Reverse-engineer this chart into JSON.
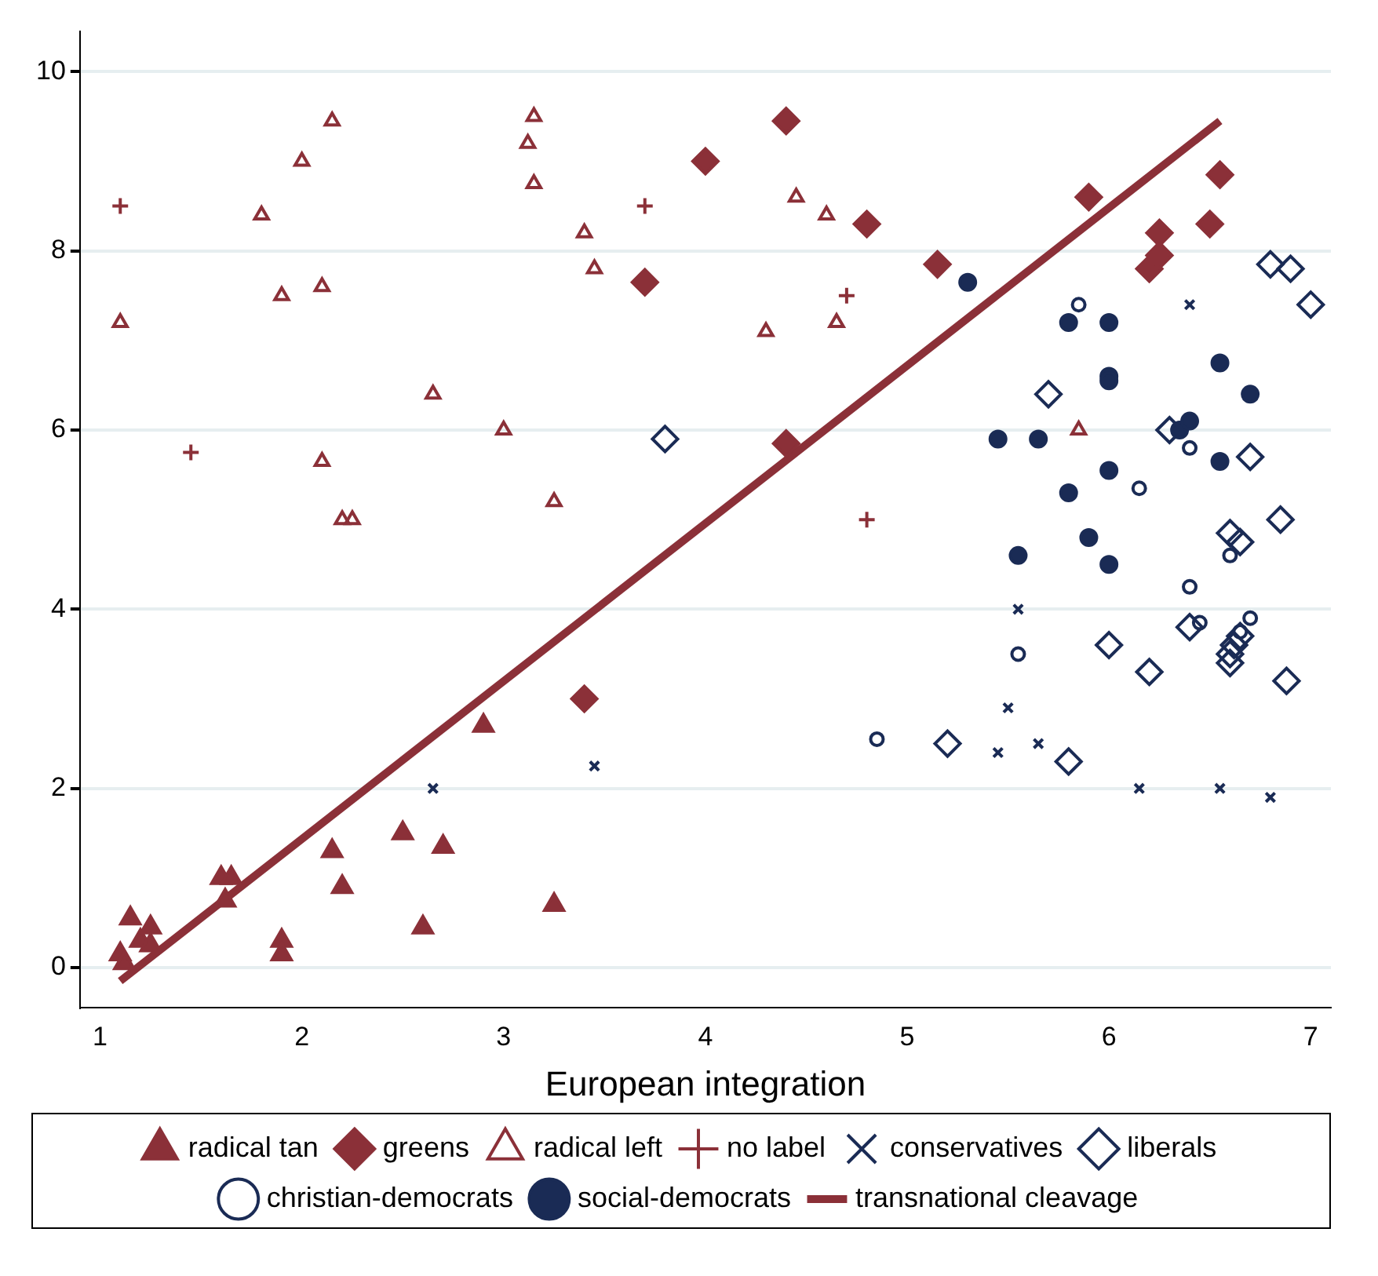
{
  "chart_data": {
    "type": "scatter",
    "xlabel": "European integration",
    "xlim": [
      0.9,
      7.1
    ],
    "ylim": [
      -0.45,
      10.45
    ],
    "xticks": [
      1,
      2,
      3,
      4,
      5,
      6,
      7
    ],
    "yticks": [
      0,
      2,
      4,
      6,
      8,
      10
    ],
    "grid": "y",
    "legend": "bottom",
    "series": [
      {
        "name": "radical tan",
        "color": "#8b3038",
        "marker": "triangle",
        "x": [
          1.1,
          1.15,
          1.12,
          1.2,
          1.25,
          1.25,
          1.6,
          1.65,
          1.62,
          1.9,
          1.9,
          2.15,
          2.2,
          2.5,
          2.6,
          2.7,
          2.9,
          3.25
        ],
        "values": [
          0.15,
          0.55,
          0.05,
          0.3,
          0.45,
          0.25,
          1.0,
          1.0,
          0.75,
          0.3,
          0.15,
          1.3,
          0.9,
          1.5,
          0.45,
          1.35,
          2.7,
          0.7
        ]
      },
      {
        "name": "greens",
        "color": "#8b3038",
        "marker": "diamond",
        "x": [
          3.4,
          3.7,
          4.0,
          4.4,
          4.4,
          4.8,
          5.15,
          5.9,
          6.2,
          6.25,
          6.25,
          6.5,
          6.55
        ],
        "values": [
          3.0,
          7.65,
          9.0,
          9.45,
          5.85,
          8.3,
          7.85,
          8.6,
          7.8,
          7.95,
          8.2,
          8.3,
          8.85
        ]
      },
      {
        "name": "radical left",
        "color": "#8b3038",
        "marker": "triangle-open",
        "x": [
          1.1,
          1.8,
          1.9,
          2.0,
          2.1,
          2.15,
          2.1,
          2.2,
          2.25,
          2.65,
          3.0,
          3.15,
          3.12,
          3.15,
          3.25,
          3.4,
          3.45,
          4.3,
          4.45,
          4.6,
          4.65,
          5.85
        ],
        "values": [
          7.2,
          8.4,
          7.5,
          9.0,
          7.6,
          9.45,
          5.65,
          5.0,
          5.0,
          6.4,
          6.0,
          9.5,
          9.2,
          8.75,
          5.2,
          8.2,
          7.8,
          7.1,
          8.6,
          8.4,
          7.2,
          6.0
        ]
      },
      {
        "name": "no label",
        "color": "#8b3038",
        "marker": "plus",
        "x": [
          1.1,
          1.45,
          3.7,
          4.7,
          4.8
        ],
        "values": [
          8.5,
          5.75,
          8.5,
          7.5,
          5.0
        ]
      },
      {
        "name": "conservatives",
        "color": "#1a2b55",
        "marker": "cross",
        "x": [
          2.65,
          3.45,
          5.45,
          5.5,
          5.55,
          5.65,
          6.15,
          6.4,
          6.55,
          6.8
        ],
        "values": [
          2.0,
          2.25,
          2.4,
          2.9,
          4.0,
          2.5,
          2.0,
          7.4,
          2.0,
          1.9
        ]
      },
      {
        "name": "liberals",
        "color": "#1a2b55",
        "marker": "diamond-open",
        "x": [
          3.8,
          5.2,
          5.7,
          5.8,
          6.0,
          6.2,
          6.3,
          6.4,
          6.6,
          6.6,
          6.62,
          6.65,
          6.6,
          6.65,
          6.7,
          6.8,
          6.85,
          6.88,
          6.9,
          7.0
        ],
        "values": [
          5.9,
          2.5,
          6.4,
          2.3,
          3.6,
          3.3,
          6.0,
          3.8,
          3.4,
          3.5,
          3.6,
          3.7,
          4.85,
          4.75,
          5.7,
          7.85,
          5.0,
          3.2,
          7.8,
          7.4
        ]
      },
      {
        "name": "christian-democrats",
        "color": "#1a2b55",
        "marker": "circle-open",
        "x": [
          4.85,
          5.55,
          5.85,
          6.15,
          6.4,
          6.4,
          6.45,
          6.6,
          6.7,
          6.65
        ],
        "values": [
          2.55,
          3.5,
          7.4,
          5.35,
          5.8,
          4.25,
          3.85,
          4.6,
          3.9,
          3.75
        ]
      },
      {
        "name": "social-democrats",
        "color": "#1a2b55",
        "marker": "circle",
        "x": [
          5.3,
          5.45,
          5.55,
          5.65,
          5.8,
          5.8,
          5.9,
          6.0,
          6.0,
          6.0,
          6.0,
          6.0,
          6.35,
          6.4,
          6.55,
          6.55,
          6.7
        ],
        "values": [
          7.65,
          5.9,
          4.6,
          5.9,
          7.2,
          5.3,
          4.8,
          7.2,
          6.6,
          6.55,
          5.55,
          4.5,
          6.0,
          6.1,
          6.75,
          5.65,
          6.4
        ]
      },
      {
        "name": "transnational cleavage",
        "type": "line",
        "color": "#8b3038",
        "marker": "none",
        "line_style": "solid",
        "x": [
          1.1,
          6.55
        ],
        "values": [
          -0.15,
          9.45
        ]
      }
    ]
  }
}
